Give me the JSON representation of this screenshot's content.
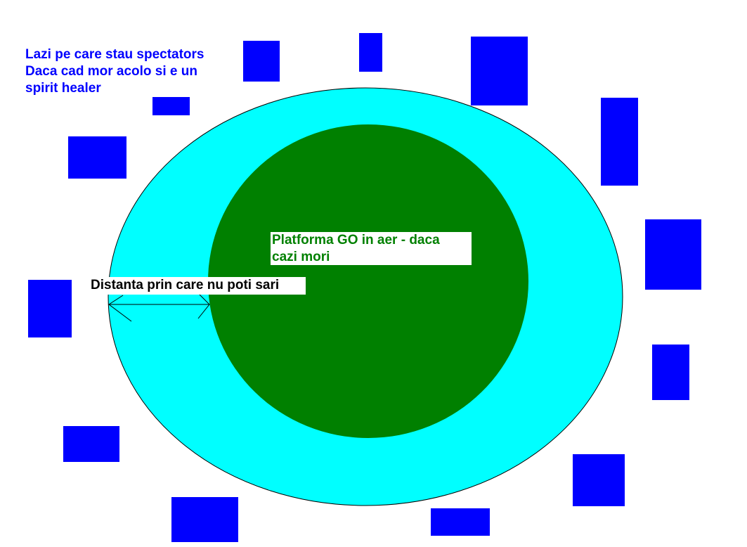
{
  "colors": {
    "background": "#ffffff",
    "outer_ring_fill": "#00ffff",
    "platform_fill": "#008000",
    "spectator_box_fill": "#0000ff",
    "legend_text": "#0000ff",
    "platform_text": "#008000",
    "distance_text": "#000000",
    "arrow_stroke": "#000000"
  },
  "labels": {
    "spectators_note": "Lazi pe care stau spectators\nDaca cad mor acolo si e un\nspirit healer",
    "platform_note": "Platforma GO in aer - daca\ncazi mori",
    "distance_note": "Distanta prin care nu poti sari"
  },
  "icons": {
    "distance_arrow": "double-headed-arrow"
  }
}
